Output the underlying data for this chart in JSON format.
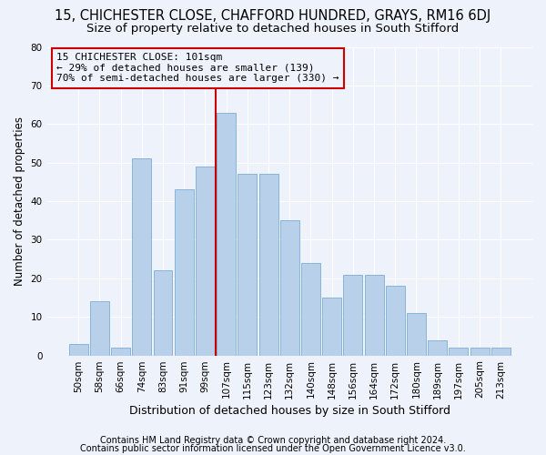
{
  "title1": "15, CHICHESTER CLOSE, CHAFFORD HUNDRED, GRAYS, RM16 6DJ",
  "title2": "Size of property relative to detached houses in South Stifford",
  "xlabel": "Distribution of detached houses by size in South Stifford",
  "ylabel": "Number of detached properties",
  "footnote1": "Contains HM Land Registry data © Crown copyright and database right 2024.",
  "footnote2": "Contains public sector information licensed under the Open Government Licence v3.0.",
  "bar_labels": [
    "50sqm",
    "58sqm",
    "66sqm",
    "74sqm",
    "83sqm",
    "91sqm",
    "99sqm",
    "107sqm",
    "115sqm",
    "123sqm",
    "132sqm",
    "140sqm",
    "148sqm",
    "156sqm",
    "164sqm",
    "172sqm",
    "180sqm",
    "189sqm",
    "197sqm",
    "205sqm",
    "213sqm"
  ],
  "bar_heights": [
    3,
    14,
    2,
    51,
    22,
    43,
    49,
    63,
    47,
    47,
    35,
    24,
    15,
    21,
    21,
    18,
    11,
    4,
    2,
    2,
    2
  ],
  "bar_color": "#b8d0ea",
  "bar_edge_color": "#7aadd4",
  "background_color": "#eef2fa",
  "grid_color": "#ffffff",
  "vline_x": 6.5,
  "vline_color": "#cc0000",
  "annotation_line1": "15 CHICHESTER CLOSE: 101sqm",
  "annotation_line2": "← 29% of detached houses are smaller (139)",
  "annotation_line3": "70% of semi-detached houses are larger (330) →",
  "annotation_box_color": "#cc0000",
  "ylim": [
    0,
    80
  ],
  "yticks": [
    0,
    10,
    20,
    30,
    40,
    50,
    60,
    70,
    80
  ],
  "title1_fontsize": 10.5,
  "title2_fontsize": 9.5,
  "xlabel_fontsize": 9,
  "ylabel_fontsize": 8.5,
  "tick_fontsize": 7.5,
  "footnote_fontsize": 7
}
